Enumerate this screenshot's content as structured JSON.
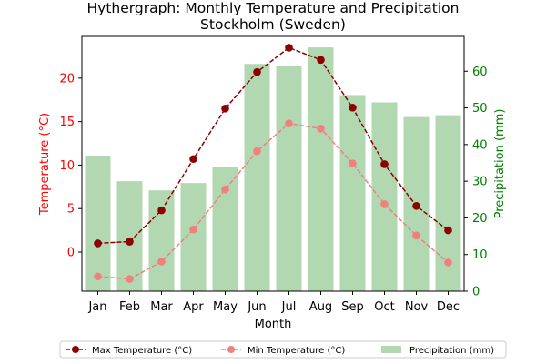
{
  "chart_data": {
    "type": "line",
    "title": "Hythergraph: Monthly Temperature and Precipitation",
    "subtitle": "Stockholm (Sweden)",
    "xlabel": "Month",
    "ylabel_left": "Temperature (°C)",
    "ylabel_right": "Precipitation (mm)",
    "categories": [
      "Jan",
      "Feb",
      "Mar",
      "Apr",
      "May",
      "Jun",
      "Jul",
      "Aug",
      "Sep",
      "Oct",
      "Nov",
      "Dec"
    ],
    "ylim_left": [
      -4.5,
      24.8
    ],
    "ylim_right": [
      0,
      69.5
    ],
    "yticks_left": [
      0,
      5,
      10,
      15,
      20
    ],
    "yticks_right": [
      0,
      10,
      20,
      30,
      40,
      50,
      60
    ],
    "grid": false,
    "legend_position": "bottom",
    "series": [
      {
        "name": "Max Temperature (°C)",
        "kind": "line",
        "axis": "left",
        "color": "#8b0000",
        "values": [
          1.0,
          1.2,
          4.8,
          10.7,
          16.5,
          20.7,
          23.5,
          22.1,
          16.6,
          10.1,
          5.3,
          2.5
        ]
      },
      {
        "name": "Min Temperature (°C)",
        "kind": "line",
        "axis": "left",
        "color": "#f08080",
        "values": [
          -2.8,
          -3.1,
          -1.1,
          2.6,
          7.2,
          11.6,
          14.8,
          14.2,
          10.2,
          5.5,
          1.9,
          -1.2
        ]
      },
      {
        "name": "Precipitation (mm)",
        "kind": "bar",
        "axis": "right",
        "color": "#b1d8b1",
        "values": [
          37,
          30,
          27.5,
          29.5,
          34,
          62,
          61.5,
          66.5,
          53.5,
          51.5,
          47.5,
          48
        ]
      }
    ],
    "colors": {
      "left_axis": "#ff0000",
      "right_axis": "#008000"
    }
  }
}
